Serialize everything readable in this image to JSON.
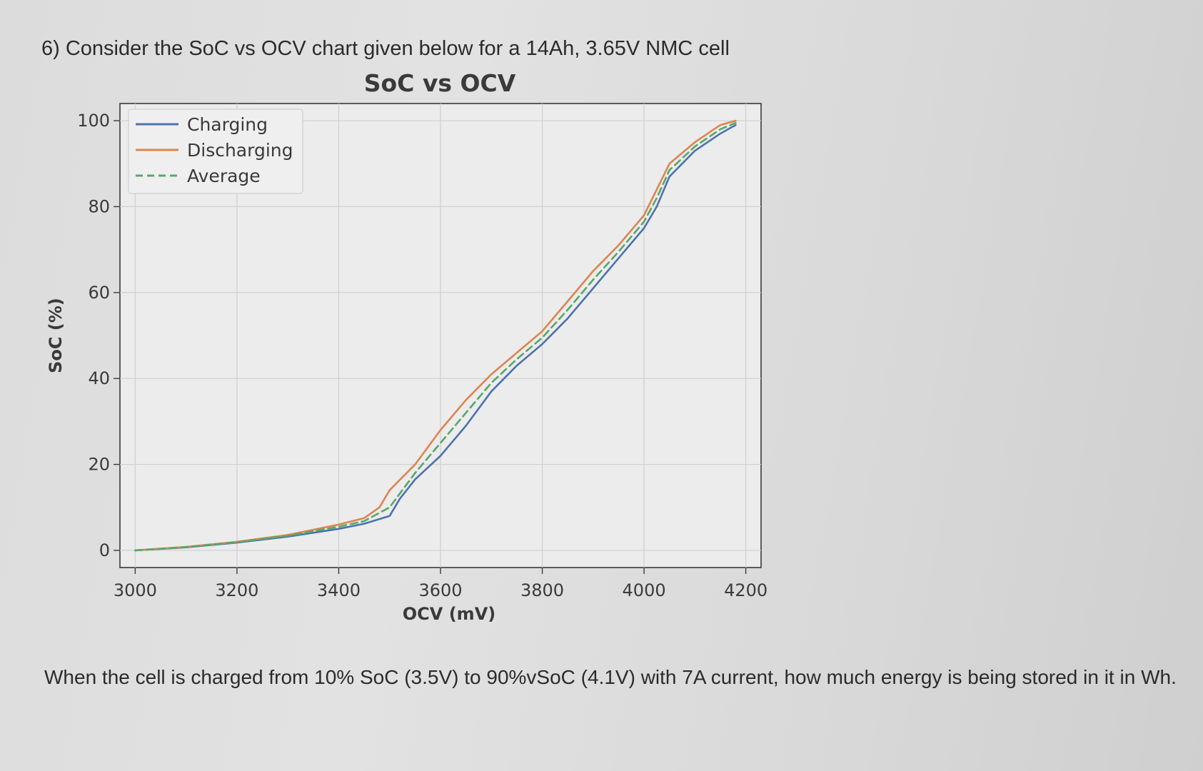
{
  "question": {
    "title": "6) Consider the SoC vs OCV chart given below for a 14Ah, 3.65V NMC cell",
    "text": "When the cell is charged from 10% SoC (3.5V) to 90%vSoC (4.1V) with 7A current, how much energy is being stored in it in Wh."
  },
  "chart_data": {
    "type": "line",
    "title": "SoC vs OCV",
    "xlabel": "OCV (mV)",
    "ylabel": "SoC (%)",
    "xlim": [
      2970,
      4230
    ],
    "ylim": [
      -4,
      104
    ],
    "xticks": [
      3000,
      3200,
      3400,
      3600,
      3800,
      4000,
      4200
    ],
    "yticks": [
      0,
      20,
      40,
      60,
      80,
      100
    ],
    "grid": true,
    "legend_position": "top-left",
    "series": [
      {
        "name": "Charging",
        "color": "#4c72b0",
        "dash": "solid",
        "x": [
          3000,
          3100,
          3200,
          3300,
          3400,
          3450,
          3500,
          3520,
          3550,
          3600,
          3650,
          3700,
          3750,
          3800,
          3850,
          3900,
          3950,
          4000,
          4025,
          4050,
          4100,
          4150,
          4180
        ],
        "y": [
          0,
          0.7,
          1.8,
          3.2,
          5,
          6.2,
          8,
          12,
          16.5,
          22,
          29,
          37,
          43,
          48,
          54,
          61,
          68,
          75,
          80,
          87,
          93,
          97,
          99
        ]
      },
      {
        "name": "Discharging",
        "color": "#dd8452",
        "dash": "solid",
        "x": [
          3000,
          3100,
          3200,
          3300,
          3400,
          3450,
          3480,
          3500,
          3550,
          3600,
          3650,
          3700,
          3750,
          3800,
          3850,
          3900,
          3950,
          4000,
          4025,
          4050,
          4100,
          4150,
          4180
        ],
        "y": [
          0,
          0.8,
          2,
          3.6,
          6,
          7.5,
          10,
          14,
          20,
          28,
          35,
          41,
          46,
          51,
          58,
          65,
          71,
          78,
          84,
          90,
          95,
          99,
          100
        ]
      },
      {
        "name": "Average",
        "color": "#55a868",
        "dash": "dashed",
        "x": [
          3000,
          3100,
          3200,
          3300,
          3400,
          3450,
          3500,
          3550,
          3600,
          3650,
          3700,
          3750,
          3800,
          3850,
          3900,
          3950,
          4000,
          4025,
          4050,
          4100,
          4150,
          4180
        ],
        "y": [
          0,
          0.75,
          1.9,
          3.4,
          5.5,
          6.8,
          10,
          18,
          25,
          32,
          39,
          44.5,
          49.5,
          56,
          63,
          69.5,
          76.5,
          82,
          88.5,
          94,
          98,
          99.5
        ]
      }
    ]
  }
}
